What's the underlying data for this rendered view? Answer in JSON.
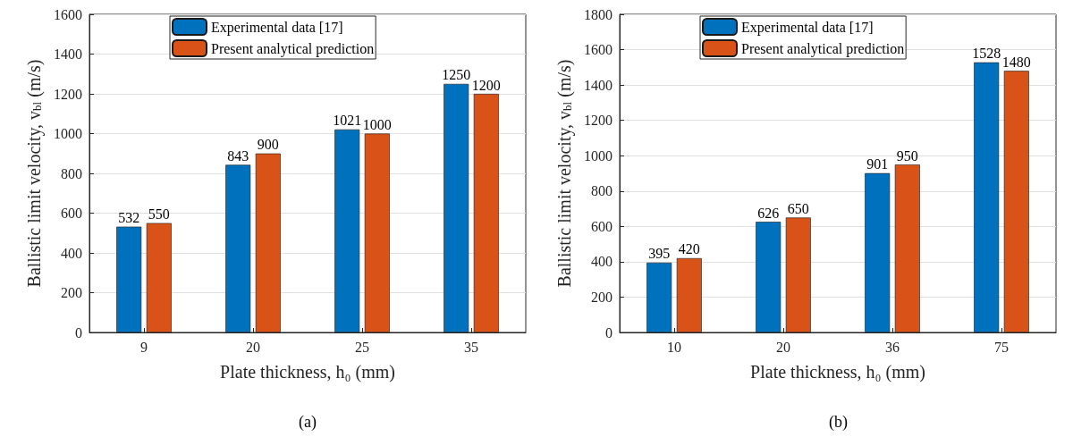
{
  "chart_data": [
    {
      "type": "bar",
      "categories": [
        "9",
        "20",
        "25",
        "35"
      ],
      "xlabel": "Plate thickness, h₀ (mm)",
      "ylabel": "Ballistic limit velocity, v$_{bl}$ (m/s)",
      "ylim": [
        0,
        1600
      ],
      "yticks": [
        0,
        200,
        400,
        600,
        800,
        1000,
        1200,
        1400,
        1600
      ],
      "grid": "y",
      "legend": "top",
      "data_labels": true,
      "annotations": [
        "(a)"
      ],
      "series": [
        {
          "name": "Experimental data [17]",
          "color": "#0072bd",
          "values": [
            532,
            843,
            1021,
            1250
          ]
        },
        {
          "name": "Present analytical prediction",
          "color": "#d95319",
          "values": [
            550,
            900,
            1000,
            1200
          ]
        }
      ]
    },
    {
      "type": "bar",
      "categories": [
        "10",
        "20",
        "36",
        "75"
      ],
      "xlabel": "Plate thickness, h₀ (mm)",
      "ylabel": "Ballistic limit velocity, v$_{bl}$ (m/s)",
      "ylim": [
        0,
        1800
      ],
      "yticks": [
        0,
        200,
        400,
        600,
        800,
        1000,
        1200,
        1400,
        1600,
        1800
      ],
      "grid": "y",
      "legend": "top",
      "data_labels": true,
      "annotations": [
        "(b)"
      ],
      "series": [
        {
          "name": "Experimental data [17]",
          "color": "#0072bd",
          "values": [
            395,
            626,
            901,
            1528
          ]
        },
        {
          "name": "Present analytical prediction",
          "color": "#d95319",
          "values": [
            420,
            650,
            950,
            1480
          ]
        }
      ]
    }
  ]
}
